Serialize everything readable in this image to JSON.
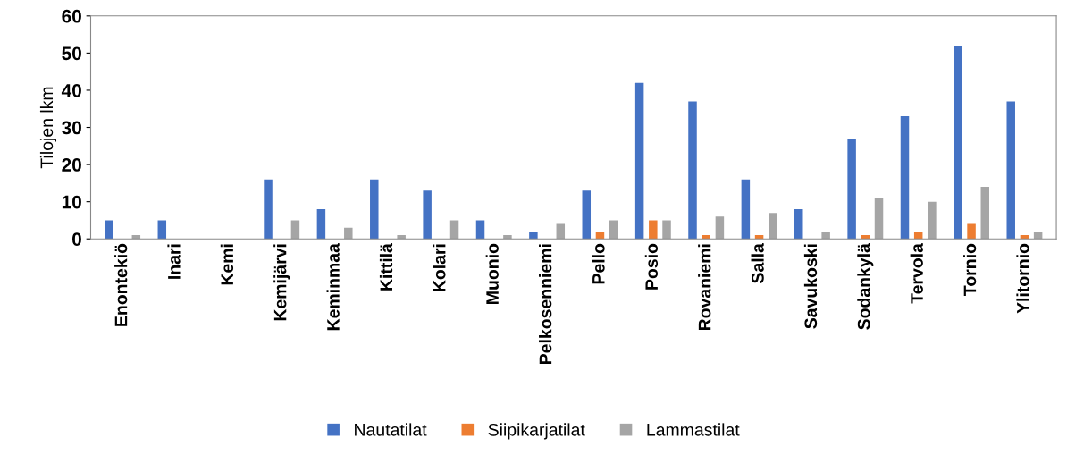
{
  "chart_data": {
    "type": "bar",
    "ylabel": "Tilojen lkm",
    "categories": [
      "Enontekiö",
      "Inari",
      "Kemi",
      "Kemijärvi",
      "Keminmaa",
      "Kittilä",
      "Kolari",
      "Muonio",
      "Pelkosenniemi",
      "Pello",
      "Posio",
      "Rovaniemi",
      "Salla",
      "Savukoski",
      "Sodankylä",
      "Tervola",
      "Tornio",
      "Ylitornio"
    ],
    "series": [
      {
        "name": "Nautatilat",
        "color": "#4472c4",
        "values": [
          5,
          5,
          0,
          16,
          8,
          16,
          13,
          5,
          2,
          13,
          42,
          37,
          16,
          8,
          27,
          33,
          52,
          37
        ]
      },
      {
        "name": "Siipikarjatilat",
        "color": "#ed7d31",
        "values": [
          0,
          0,
          0,
          0,
          0,
          0,
          0,
          0,
          0,
          2,
          5,
          1,
          1,
          0,
          1,
          2,
          4,
          1
        ]
      },
      {
        "name": "Lammastilat",
        "color": "#a5a5a5",
        "values": [
          1,
          0,
          0,
          5,
          3,
          1,
          5,
          1,
          4,
          5,
          5,
          6,
          7,
          2,
          11,
          10,
          14,
          2
        ]
      }
    ],
    "ylim": [
      0,
      60
    ],
    "yticks": [
      0,
      10,
      20,
      30,
      40,
      50,
      60
    ],
    "grid": false,
    "legend": "bottom"
  }
}
